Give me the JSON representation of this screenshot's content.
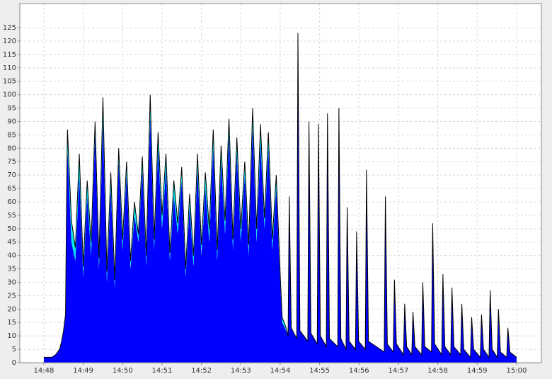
{
  "chart_data": {
    "type": "area",
    "stacked": true,
    "grid": true,
    "outline_color": "#000000",
    "xlim": [
      -0.61,
      12.63
    ],
    "ylim": [
      0,
      134
    ],
    "xticks": [
      {
        "value": 0,
        "label": "14:48"
      },
      {
        "value": 1,
        "label": "14:49"
      },
      {
        "value": 2,
        "label": "14:50"
      },
      {
        "value": 3,
        "label": "14:51"
      },
      {
        "value": 4,
        "label": "14:52"
      },
      {
        "value": 5,
        "label": "14:53"
      },
      {
        "value": 6,
        "label": "14:54"
      },
      {
        "value": 7,
        "label": "14:55"
      },
      {
        "value": 8,
        "label": "14:56"
      },
      {
        "value": 9,
        "label": "14:57"
      },
      {
        "value": 10,
        "label": "14:58"
      },
      {
        "value": 11,
        "label": "14:59"
      },
      {
        "value": 12,
        "label": "15:00"
      }
    ],
    "yticks": [
      0,
      5,
      10,
      15,
      20,
      25,
      30,
      35,
      40,
      45,
      50,
      55,
      60,
      65,
      70,
      75,
      80,
      85,
      90,
      95,
      100,
      105,
      110,
      115,
      120,
      125
    ],
    "x": [
      0,
      0.2,
      0.3,
      0.4,
      0.45,
      0.5,
      0.55,
      0.58,
      0.6,
      0.7,
      0.8,
      0.9,
      1.0,
      1.1,
      1.2,
      1.3,
      1.4,
      1.5,
      1.6,
      1.7,
      1.8,
      1.9,
      2.0,
      2.1,
      2.2,
      2.3,
      2.4,
      2.5,
      2.6,
      2.7,
      2.8,
      2.9,
      3.0,
      3.1,
      3.2,
      3.3,
      3.4,
      3.5,
      3.6,
      3.7,
      3.8,
      3.9,
      4.0,
      4.1,
      4.2,
      4.3,
      4.4,
      4.5,
      4.6,
      4.7,
      4.8,
      4.9,
      5.0,
      5.1,
      5.2,
      5.3,
      5.4,
      5.5,
      5.6,
      5.7,
      5.8,
      5.9,
      6.0,
      6.05,
      6.15,
      6.2,
      6.23,
      6.28,
      6.42,
      6.45,
      6.5,
      6.7,
      6.73,
      6.78,
      6.94,
      6.97,
      7.02,
      7.17,
      7.2,
      7.25,
      7.46,
      7.49,
      7.54,
      7.67,
      7.7,
      7.75,
      7.91,
      7.94,
      7.99,
      8.16,
      8.19,
      8.24,
      8.64,
      8.67,
      8.72,
      8.87,
      8.9,
      8.95,
      9.13,
      9.16,
      9.21,
      9.34,
      9.37,
      9.42,
      9.59,
      9.62,
      9.67,
      9.84,
      9.87,
      9.92,
      10.1,
      10.13,
      10.18,
      10.33,
      10.36,
      10.41,
      10.58,
      10.61,
      10.66,
      10.83,
      10.86,
      10.91,
      11.08,
      11.11,
      11.16,
      11.3,
      11.33,
      11.38,
      11.51,
      11.54,
      11.59,
      11.75,
      11.78,
      11.83,
      12.0
    ],
    "series": [
      {
        "color": "#0000ff",
        "values": [
          2,
          2,
          3,
          5,
          8,
          12,
          18,
          60,
          80,
          45,
          38,
          70,
          32,
          62,
          40,
          85,
          35,
          90,
          30,
          65,
          28,
          75,
          42,
          70,
          35,
          55,
          45,
          72,
          36,
          92,
          42,
          80,
          50,
          72,
          38,
          62,
          48,
          68,
          32,
          58,
          36,
          72,
          40,
          65,
          45,
          80,
          38,
          75,
          48,
          85,
          42,
          78,
          45,
          70,
          40,
          88,
          45,
          82,
          50,
          80,
          42,
          65,
          30,
          15,
          12,
          10,
          62,
          13,
          9,
          123,
          12,
          8,
          90,
          11,
          7,
          89,
          10,
          6,
          93,
          9,
          6,
          95,
          9,
          5,
          58,
          8,
          5,
          49,
          8,
          5,
          72,
          8,
          4,
          62,
          7,
          4,
          31,
          7,
          3,
          22,
          6,
          3,
          19,
          6,
          3,
          30,
          6,
          4,
          52,
          7,
          3,
          33,
          6,
          3,
          28,
          6,
          3,
          22,
          5,
          2,
          17,
          5,
          2,
          18,
          5,
          2,
          27,
          5,
          2,
          20,
          4,
          2,
          13,
          4,
          2
        ]
      },
      {
        "color": "#00e8e8",
        "values": [
          0,
          0,
          0,
          0,
          0,
          0,
          0,
          5,
          7,
          8,
          5,
          8,
          4,
          6,
          5,
          5,
          4,
          9,
          4,
          6,
          3,
          5,
          4,
          5,
          3,
          5,
          3,
          5,
          4,
          8,
          4,
          6,
          5,
          6,
          3,
          6,
          4,
          5,
          3,
          5,
          4,
          6,
          4,
          6,
          5,
          7,
          4,
          6,
          5,
          6,
          4,
          6,
          5,
          5,
          4,
          7,
          5,
          7,
          4,
          6,
          4,
          5,
          3,
          2,
          1,
          0,
          0,
          0,
          0,
          0,
          0,
          0,
          0,
          0,
          0,
          0,
          0,
          0,
          0,
          0,
          0,
          0,
          0,
          0,
          0,
          0,
          0,
          0,
          0,
          0,
          0,
          0,
          0,
          0,
          0,
          0,
          0,
          0,
          0,
          0,
          0,
          0,
          0,
          0,
          0,
          0,
          0,
          0,
          0,
          0,
          0,
          0,
          0,
          0,
          0,
          0,
          0,
          0,
          0,
          0,
          0,
          0,
          0,
          0,
          0,
          0,
          0,
          0,
          0,
          0,
          0,
          0,
          0,
          0,
          0
        ]
      }
    ]
  }
}
